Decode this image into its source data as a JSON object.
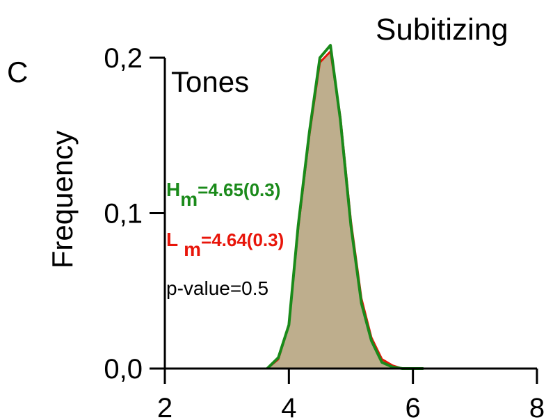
{
  "panel_label": "C",
  "chart_data": {
    "type": "area",
    "title": "Subitizing",
    "subtitle": "Tones",
    "ylabel": "Frequency",
    "xlabel": "",
    "xlim": [
      2,
      8
    ],
    "ylim": [
      0,
      0.2
    ],
    "x_ticks": [
      {
        "value": 2,
        "label": "2"
      },
      {
        "value": 4,
        "label": "4"
      },
      {
        "value": 6,
        "label": "6"
      },
      {
        "value": 8,
        "label": "8"
      }
    ],
    "y_ticks": [
      {
        "value": 0.0,
        "label": "0,0"
      },
      {
        "value": 0.1,
        "label": "0,1"
      },
      {
        "value": 0.2,
        "label": "0,2"
      }
    ],
    "series": [
      {
        "color": "#e8150a",
        "x": [
          3.65,
          3.83,
          4.0,
          4.15,
          4.33,
          4.5,
          4.67,
          4.83,
          5.0,
          5.17,
          5.33,
          5.5,
          5.67,
          5.83,
          6.0,
          6.17
        ],
        "y": [
          0.0,
          0.006,
          0.028,
          0.09,
          0.15,
          0.197,
          0.204,
          0.162,
          0.095,
          0.045,
          0.02,
          0.006,
          0.002,
          0.0,
          0.0,
          0.0
        ]
      },
      {
        "color": "#1a8a1a",
        "x": [
          3.65,
          3.83,
          4.0,
          4.15,
          4.33,
          4.5,
          4.67,
          4.83,
          5.0,
          5.17,
          5.33,
          5.5,
          5.67,
          5.83,
          6.0,
          6.17
        ],
        "y": [
          0.0,
          0.007,
          0.028,
          0.092,
          0.152,
          0.2,
          0.208,
          0.16,
          0.092,
          0.042,
          0.018,
          0.004,
          0.001,
          0.0,
          0.0,
          0.0
        ]
      }
    ],
    "fill_color": "#beae8d",
    "annotations": [
      {
        "id": "hm",
        "main": "H",
        "sub": "m",
        "value": "=4.65(0.3)",
        "color": "#1a8a1a"
      },
      {
        "id": "lm",
        "main": "L",
        "sub": "m",
        "value": "=4.64(0.3)",
        "color": "#e8150a"
      },
      {
        "id": "p",
        "text": "p-value=0.5",
        "color": "#000000"
      }
    ]
  }
}
